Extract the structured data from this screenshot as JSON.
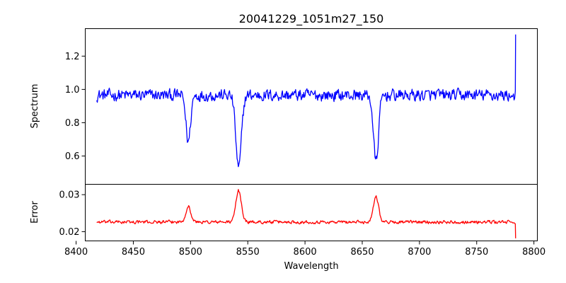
{
  "chart_data": {
    "type": "line",
    "title": "20041229_1051m27_150",
    "xlabel": "Wavelength",
    "xlim": [
      8408,
      8803
    ],
    "x_ticks": [
      "8400",
      "8450",
      "8500",
      "8550",
      "8600",
      "8650",
      "8700",
      "8750",
      "8800"
    ],
    "x_tick_values": [
      8400,
      8450,
      8500,
      8550,
      8600,
      8650,
      8700,
      8750,
      8800
    ],
    "x_range": [
      8418,
      8784
    ],
    "grid": false,
    "panels": [
      {
        "ylabel": "Spectrum",
        "ylim": [
          0.43,
          1.365
        ],
        "y_ticks": [
          "0.6",
          "0.8",
          "1.0",
          "1.2"
        ],
        "y_tick_values": [
          0.6,
          0.8,
          1.0,
          1.2
        ],
        "series": [
          {
            "color": "#0000ff",
            "baseline": 0.965,
            "noise": 0.05,
            "end_value": 1.33,
            "lines": [
              {
                "center": 8498,
                "depth": 0.28,
                "width": 2.0
              },
              {
                "center": 8542,
                "depth": 0.44,
                "width": 2.4
              },
              {
                "center": 8662,
                "depth": 0.4,
                "width": 2.2
              }
            ]
          }
        ]
      },
      {
        "ylabel": "Error",
        "ylim": [
          0.0175,
          0.0328
        ],
        "y_ticks": [
          "0.02",
          "0.03"
        ],
        "y_tick_values": [
          0.02,
          0.03
        ],
        "series": [
          {
            "color": "#ff0000",
            "baseline": 0.0226,
            "noise": 0.0006,
            "end_value": 0.0182,
            "lines": [
              {
                "center": 8498,
                "depth": -0.0042,
                "width": 2.2
              },
              {
                "center": 8542,
                "depth": -0.0085,
                "width": 2.4
              },
              {
                "center": 8662,
                "depth": -0.007,
                "width": 2.3
              }
            ]
          }
        ]
      }
    ]
  }
}
